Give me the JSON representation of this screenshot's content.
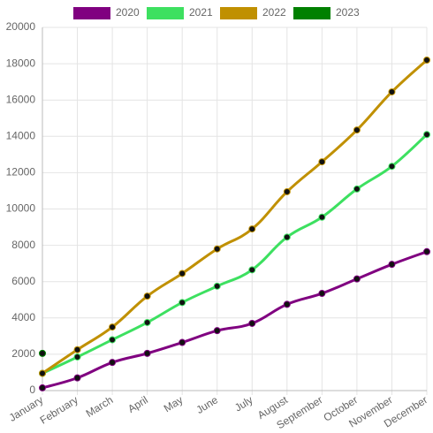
{
  "chart_data": {
    "type": "line",
    "categories": [
      "January",
      "February",
      "March",
      "April",
      "May",
      "June",
      "July",
      "August",
      "September",
      "October",
      "November",
      "December"
    ],
    "series": [
      {
        "name": "2020",
        "color": "#800080",
        "values": [
          150,
          700,
          1550,
          2050,
          2650,
          3300,
          3700,
          4750,
          5350,
          6150,
          6950,
          7650
        ]
      },
      {
        "name": "2021",
        "color": "#3de060",
        "values": [
          950,
          1850,
          2800,
          3750,
          4850,
          5750,
          6650,
          8450,
          9550,
          11100,
          12350,
          14100
        ]
      },
      {
        "name": "2022",
        "color": "#c09000",
        "values": [
          950,
          2250,
          3500,
          5200,
          6450,
          7800,
          8900,
          10950,
          12600,
          14350,
          16450,
          18200
        ]
      },
      {
        "name": "2023",
        "color": "#008000",
        "values": [
          2050,
          null,
          null,
          null,
          null,
          null,
          null,
          null,
          null,
          null,
          null,
          null
        ]
      }
    ],
    "ylim": [
      0,
      20000
    ],
    "yticks": [
      0,
      2000,
      4000,
      6000,
      8000,
      10000,
      12000,
      14000,
      16000,
      18000,
      20000
    ],
    "grid": true,
    "legend": "top"
  }
}
